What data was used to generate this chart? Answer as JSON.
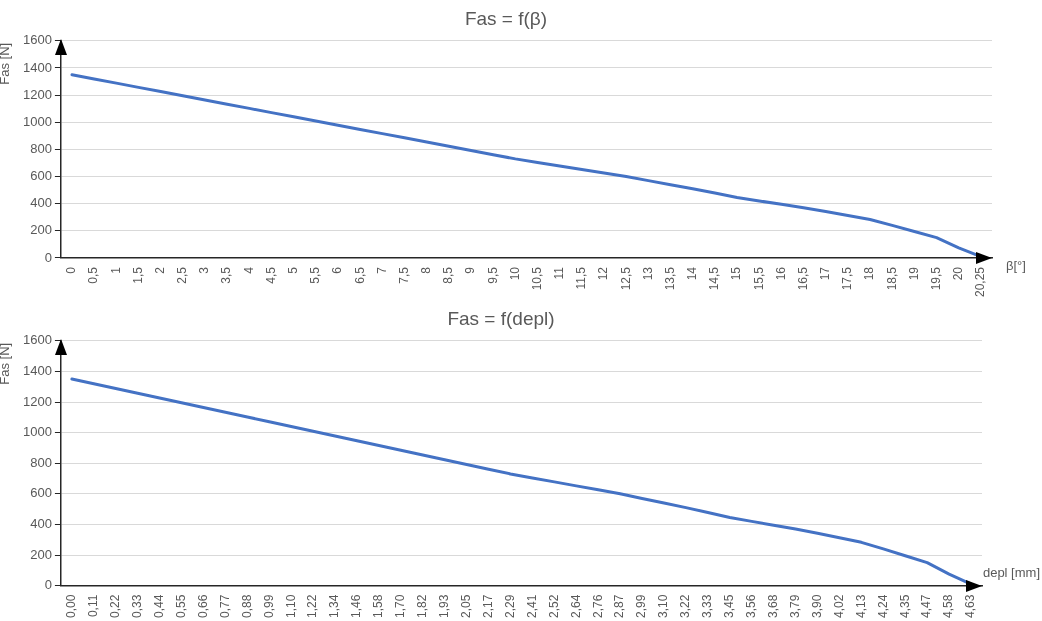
{
  "chart_data": [
    {
      "type": "line",
      "title": "Fas = f(β)",
      "xlabel": "β[°]",
      "ylabel": "Fas [N]",
      "categories": [
        "0",
        "0,5",
        "1",
        "1,5",
        "2",
        "2,5",
        "3",
        "3,5",
        "4",
        "4,5",
        "5",
        "5,5",
        "6",
        "6,5",
        "7",
        "7,5",
        "8",
        "8,5",
        "9",
        "9,5",
        "10",
        "10,5",
        "11",
        "11,5",
        "12",
        "12,5",
        "13",
        "13,5",
        "14",
        "14,5",
        "15",
        "15,5",
        "16",
        "16,5",
        "17",
        "17,5",
        "18",
        "18,5",
        "19",
        "19,5",
        "20",
        "20,25"
      ],
      "series": [
        {
          "color": "#4472c4",
          "values": [
            1350,
            1319,
            1288,
            1257,
            1226,
            1195,
            1164,
            1133,
            1102,
            1071,
            1040,
            1009,
            978,
            947,
            916,
            885,
            854,
            823,
            792,
            761,
            730,
            704,
            678,
            652,
            626,
            600,
            570,
            540,
            510,
            478,
            445,
            420,
            395,
            370,
            343,
            313,
            283,
            240,
            195,
            150,
            75,
            10
          ]
        }
      ],
      "ylim": [
        0,
        1600
      ],
      "yticks": [
        0,
        200,
        400,
        600,
        800,
        1000,
        1200,
        1400,
        1600
      ],
      "grid": "y",
      "legend": false,
      "marker": "none",
      "line_style": "solid"
    },
    {
      "type": "line",
      "title": "Fas = f(depl)",
      "xlabel": "depl [mm]",
      "ylabel": "Fas [N]",
      "categories": [
        "0,00",
        "0,11",
        "0,22",
        "0,33",
        "0,44",
        "0,55",
        "0,66",
        "0,77",
        "0,88",
        "0,99",
        "1,10",
        "1,22",
        "1,34",
        "1,46",
        "1,58",
        "1,70",
        "1,82",
        "1,93",
        "2,05",
        "2,17",
        "2,29",
        "2,41",
        "2,52",
        "2,64",
        "2,76",
        "2,87",
        "2,99",
        "3,10",
        "3,22",
        "3,33",
        "3,45",
        "3,56",
        "3,68",
        "3,79",
        "3,90",
        "4,02",
        "4,13",
        "4,24",
        "4,35",
        "4,47",
        "4,58",
        "4,63"
      ],
      "series": [
        {
          "color": "#4472c4",
          "values": [
            1350,
            1319,
            1288,
            1257,
            1226,
            1195,
            1164,
            1133,
            1102,
            1071,
            1040,
            1009,
            978,
            947,
            916,
            885,
            854,
            823,
            792,
            761,
            730,
            704,
            678,
            652,
            626,
            600,
            570,
            540,
            510,
            478,
            445,
            420,
            395,
            370,
            343,
            313,
            283,
            240,
            195,
            150,
            75,
            10
          ]
        }
      ],
      "ylim": [
        0,
        1600
      ],
      "yticks": [
        0,
        200,
        400,
        600,
        800,
        1000,
        1200,
        1400,
        1600
      ],
      "grid": "y",
      "legend": false,
      "marker": "none",
      "line_style": "solid"
    }
  ]
}
